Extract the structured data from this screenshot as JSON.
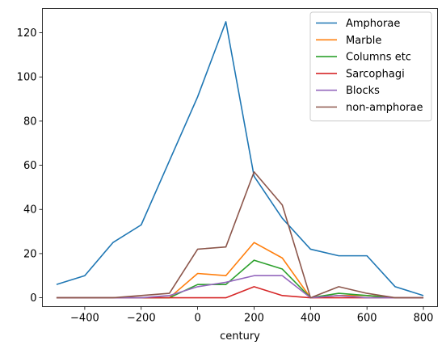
{
  "chart_data": {
    "type": "line",
    "xlabel": "century",
    "ylabel": "",
    "xlim": [
      -550,
      850
    ],
    "ylim": [
      -4,
      131
    ],
    "xticks": [
      -400,
      -200,
      0,
      200,
      400,
      600,
      800
    ],
    "yticks": [
      0,
      20,
      40,
      60,
      80,
      100,
      120
    ],
    "xtick_labels": [
      "−400",
      "−200",
      "0",
      "200",
      "400",
      "600",
      "800"
    ],
    "ytick_labels": [
      "0",
      "20",
      "40",
      "60",
      "80",
      "100",
      "120"
    ],
    "grid": false,
    "legend_position": "top-right",
    "x": [
      -500,
      -400,
      -300,
      -200,
      -100,
      0,
      100,
      200,
      300,
      400,
      500,
      600,
      700,
      800
    ],
    "series": [
      {
        "name": "Amphorae",
        "color": "#1f77b4",
        "values": [
          6,
          10,
          25,
          33,
          62,
          91,
          125,
          55,
          36,
          22,
          19,
          19,
          5,
          1
        ]
      },
      {
        "name": "Marble",
        "color": "#ff7f0e",
        "values": [
          0,
          0,
          0,
          0,
          0,
          11,
          10,
          25,
          18,
          0,
          1,
          1,
          0,
          0
        ]
      },
      {
        "name": "Columns etc",
        "color": "#2ca02c",
        "values": [
          0,
          0,
          0,
          0,
          0,
          6,
          6,
          17,
          13,
          0,
          2,
          1,
          0,
          0
        ]
      },
      {
        "name": "Sarcophagi",
        "color": "#d62728",
        "values": [
          0,
          0,
          0,
          0,
          0,
          0,
          0,
          5,
          1,
          0,
          0,
          0,
          0,
          0
        ]
      },
      {
        "name": "Blocks",
        "color": "#9467bd",
        "values": [
          0,
          0,
          0,
          0,
          1,
          5,
          7,
          10,
          10,
          0,
          1,
          0,
          0,
          0
        ]
      },
      {
        "name": "non-amphorae",
        "color": "#8c564b",
        "values": [
          0,
          0,
          0,
          1,
          2,
          22,
          23,
          57,
          42,
          0,
          5,
          2,
          0,
          0
        ]
      }
    ]
  }
}
